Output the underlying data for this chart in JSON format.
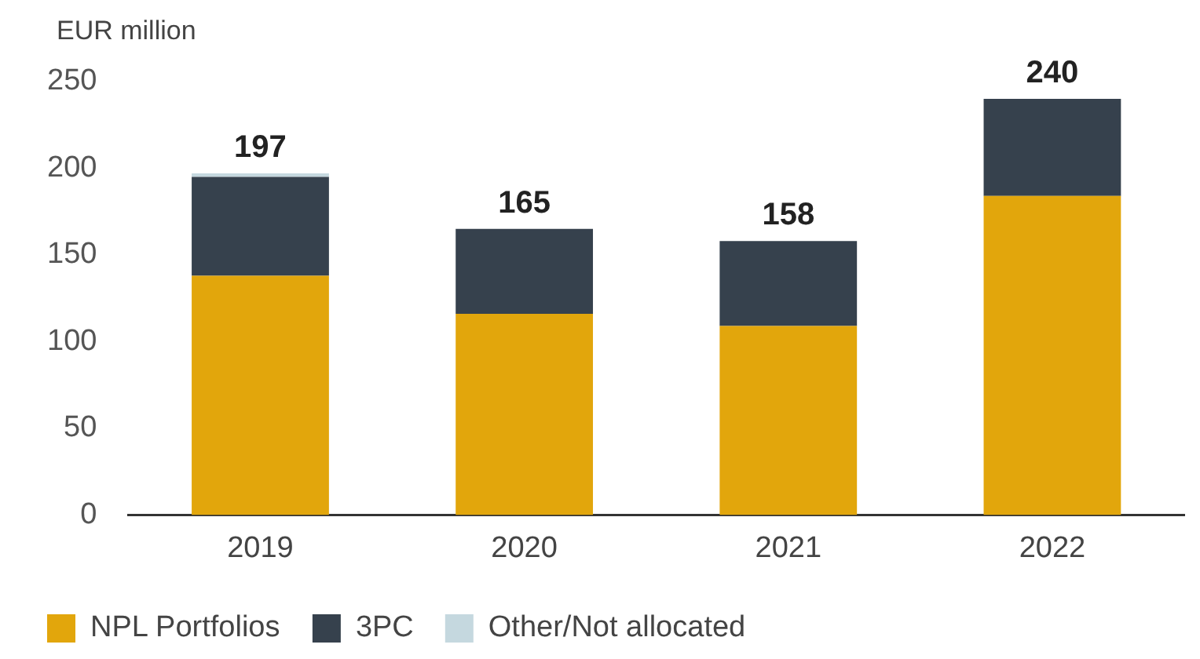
{
  "chart_data": {
    "type": "bar",
    "ylabel": "EUR million",
    "stacked": true,
    "categories": [
      "2019",
      "2020",
      "2021",
      "2022"
    ],
    "series": [
      {
        "name": "NPL Portfolios",
        "color": "#e2a60c",
        "values": [
          138,
          116,
          109,
          184
        ]
      },
      {
        "name": "3PC",
        "color": "#36414d",
        "values": [
          57,
          49,
          49,
          56
        ]
      },
      {
        "name": "Other/Not allocated",
        "color": "#c5d8df",
        "values": [
          2,
          0,
          0,
          0
        ]
      }
    ],
    "totals": [
      "197",
      "165",
      "158",
      "240"
    ],
    "ylim": [
      0,
      250
    ],
    "yticks": [
      0,
      50,
      100,
      150,
      200,
      250
    ],
    "grid": false,
    "legend": "bottom left"
  }
}
